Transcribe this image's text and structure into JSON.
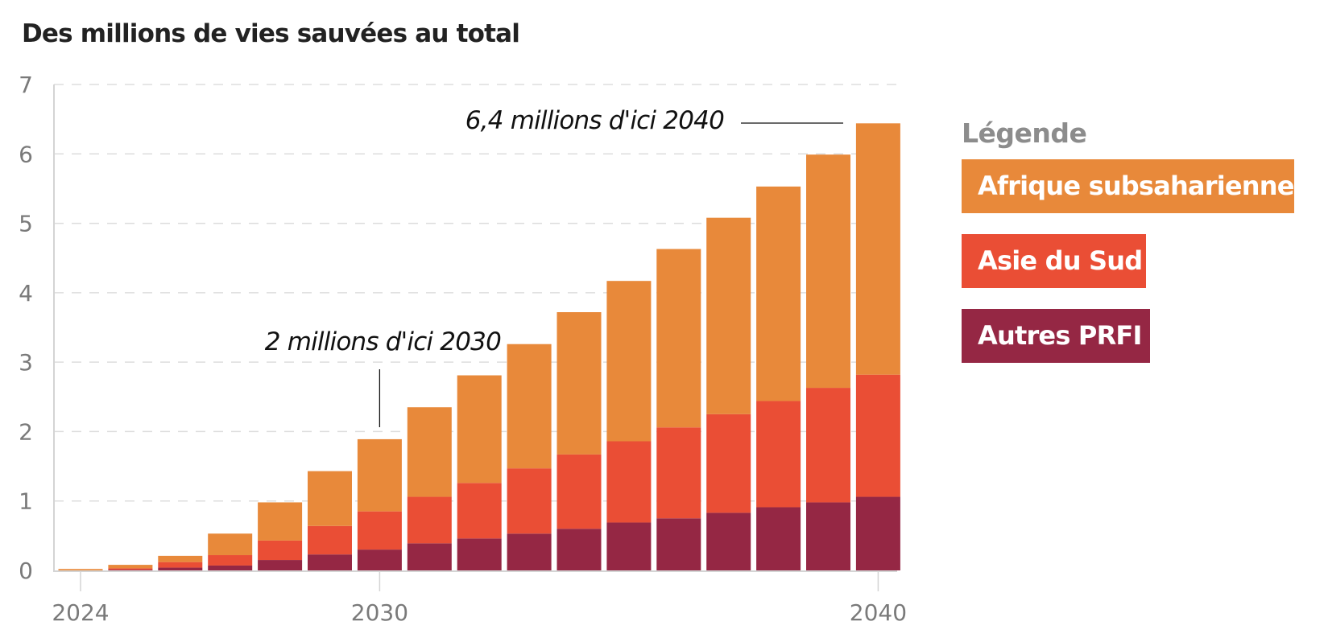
{
  "chart_data": {
    "type": "bar",
    "stacked": true,
    "title": "Des millions de vies sauvées au total",
    "xlabel": "",
    "ylabel": "",
    "ylim": [
      0,
      7
    ],
    "yticks": [
      0,
      1,
      2,
      3,
      4,
      5,
      6,
      7
    ],
    "xticks": [
      2024,
      2030,
      2040
    ],
    "grid": true,
    "categories": [
      2024,
      2025,
      2026,
      2027,
      2028,
      2029,
      2030,
      2031,
      2032,
      2033,
      2034,
      2035,
      2036,
      2037,
      2038,
      2039,
      2040
    ],
    "series": [
      {
        "name": "Autres PRFI",
        "color": "#952744",
        "values": [
          0.0,
          0.01,
          0.04,
          0.07,
          0.15,
          0.23,
          0.3,
          0.39,
          0.46,
          0.53,
          0.6,
          0.69,
          0.75,
          0.83,
          0.91,
          0.98,
          1.06
        ]
      },
      {
        "name": "Asie du Sud",
        "color": "#EA4E35",
        "values": [
          0.0,
          0.02,
          0.08,
          0.15,
          0.28,
          0.41,
          0.55,
          0.67,
          0.8,
          0.94,
          1.07,
          1.17,
          1.31,
          1.42,
          1.53,
          1.65,
          1.76
        ]
      },
      {
        "name": "Afrique subsaharienne",
        "color": "#E8893A",
        "values": [
          0.02,
          0.05,
          0.09,
          0.31,
          0.55,
          0.79,
          1.04,
          1.29,
          1.55,
          1.79,
          2.05,
          2.31,
          2.57,
          2.83,
          3.09,
          3.36,
          3.62
        ]
      }
    ],
    "totals": [
      0.02,
      0.08,
      0.21,
      0.53,
      0.98,
      1.43,
      1.89,
      2.35,
      2.81,
      3.26,
      3.72,
      4.17,
      4.63,
      5.08,
      5.53,
      5.99,
      6.44
    ],
    "annotations": [
      {
        "text": "2 millions d'ici 2030",
        "target_year": 2030,
        "target_value": 2.0
      },
      {
        "text": "6,4 millions d'ici 2040",
        "target_year": 2040,
        "target_value": 6.4
      }
    ],
    "legend": {
      "title": "Légende",
      "position": "right",
      "entries": [
        "Afrique subsaharienne",
        "Asie du Sud",
        "Autres PRFI"
      ]
    }
  },
  "colors": {
    "afrique": "#E8893A",
    "asie": "#EA4E35",
    "autres": "#952744",
    "grid": "#dddddd",
    "axis": "#d4d4d4",
    "tick_text": "#7a7a7a"
  }
}
